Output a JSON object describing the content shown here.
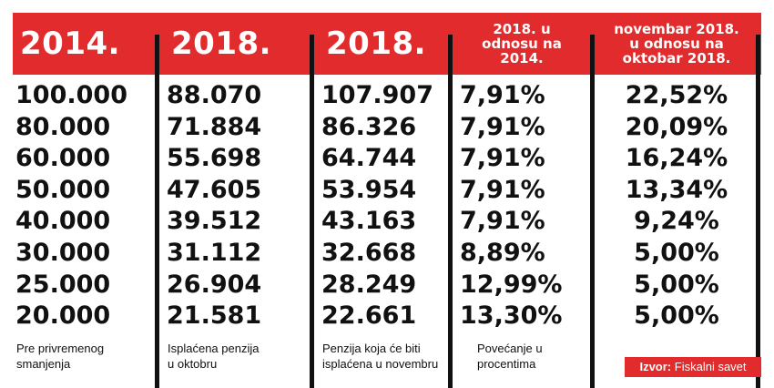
{
  "table": {
    "columns": [
      {
        "header": "2014.",
        "values": [
          "100.000",
          "80.000",
          "60.000",
          "50.000",
          "40.000",
          "30.000",
          "25.000",
          "20.000"
        ],
        "footnote": "Pre privremenog\nsmanjenja"
      },
      {
        "header": "2018.",
        "values": [
          "88.070",
          "71.884",
          "55.698",
          "47.605",
          "39.512",
          "31.112",
          "26.904",
          "21.581"
        ],
        "footnote": "Isplaćena penzija\nu oktobru"
      },
      {
        "header": "2018.",
        "values": [
          "107.907",
          "86.326",
          "64.744",
          "53.954",
          "43.163",
          "32.668",
          "28.249",
          "22.661"
        ],
        "footnote": "Penzija koja će biti\nisplaćena u novembru"
      },
      {
        "header": "2018. u\nodnosu na\n2014.",
        "values": [
          "7,91%",
          "7,91%",
          "7,91%",
          "7,91%",
          "7,91%",
          "8,89%",
          "12,99%",
          "13,30%"
        ],
        "footnote": "Povećanje u\nprocentima"
      },
      {
        "header": "novembar 2018.\nu odnosu na\noktobar 2018.",
        "values": [
          "22,52%",
          "20,09%",
          "16,24%",
          "13,34%",
          "9,24%",
          "5,00%",
          "5,00%",
          "5,00%"
        ],
        "footnote": ""
      }
    ]
  },
  "source": {
    "label": "Izvor:",
    "text": "Fiskalni savet"
  },
  "colors": {
    "header_red": "#e12b2c",
    "text": "#111111"
  }
}
